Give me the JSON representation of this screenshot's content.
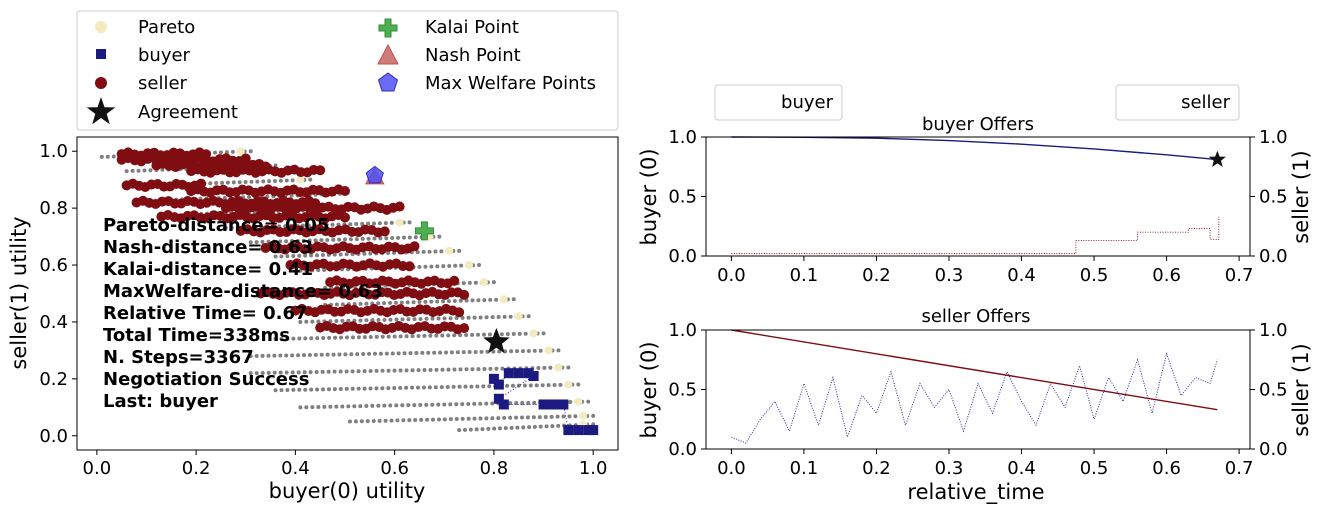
{
  "colors": {
    "pareto": "#f2ebc0",
    "buyer": "#1a1a80",
    "seller": "#7f0d12",
    "outcomes": "#808080",
    "kalai": "#4caf50",
    "nash": "#c0504d",
    "welfare": "#5050f0",
    "agreement": "#111111",
    "buyer_line": "#1a1a80",
    "seller_line": "#7f0d12"
  },
  "chart_data": [
    {
      "type": "scatter",
      "xlabel": "buyer(0) utility",
      "ylabel": "seller(1) utility",
      "xlim": [
        -0.04,
        1.05
      ],
      "ylim": [
        -0.05,
        1.05
      ],
      "xticks": [
        "0.0",
        "0.2",
        "0.4",
        "0.6",
        "0.8",
        "1.0"
      ],
      "xtick_values": [
        0,
        0.2,
        0.4,
        0.6,
        0.8,
        1.0
      ],
      "yticks": [
        "0.0",
        "0.2",
        "0.4",
        "0.6",
        "0.8",
        "1.0"
      ],
      "ytick_values": [
        0,
        0.2,
        0.4,
        0.6,
        0.8,
        1.0
      ],
      "legend": {
        "placement": "top",
        "items": [
          {
            "label": "Pareto",
            "marker": "circle-pareto"
          },
          {
            "label": "Kalai Point",
            "marker": "plus-kalai"
          },
          {
            "label": "buyer",
            "marker": "square-buyer"
          },
          {
            "label": "Nash Point",
            "marker": "triangle-nash"
          },
          {
            "label": "seller",
            "marker": "circle-seller"
          },
          {
            "label": "Max Welfare Points",
            "marker": "pentagon-welfare"
          },
          {
            "label": "Agreement",
            "marker": "star-agreement"
          }
        ]
      },
      "special_points": {
        "kalai": [
          0.66,
          0.72
        ],
        "nash": [
          0.56,
          0.91
        ],
        "welfare": [
          0.56,
          0.915
        ],
        "agreement": [
          0.805,
          0.33
        ]
      },
      "stats": [
        "Pareto-distance= 0.05",
        "Nash-distance= 0.63",
        "Kalai-distance= 0.41",
        "MaxWelfare-distance= 0.63",
        "Relative Time= 0.67",
        "Total Time=338ms",
        "N. Steps=3367",
        "Negotiation Success",
        "Last: buyer"
      ],
      "outcome_rows": [
        {
          "y": 0.98,
          "x0": 0.01,
          "x1": 0.31
        },
        {
          "y": 0.93,
          "x0": 0.06,
          "x1": 0.36
        },
        {
          "y": 0.88,
          "x0": 0.11,
          "x1": 0.43
        },
        {
          "y": 0.83,
          "x0": 0.16,
          "x1": 0.49
        },
        {
          "y": 0.78,
          "x0": 0.21,
          "x1": 0.56
        },
        {
          "y": 0.73,
          "x0": 0.26,
          "x1": 0.63
        },
        {
          "y": 0.68,
          "x0": 0.31,
          "x1": 0.69
        },
        {
          "y": 0.63,
          "x0": 0.36,
          "x1": 0.73
        },
        {
          "y": 0.58,
          "x0": 0.41,
          "x1": 0.77
        },
        {
          "y": 0.52,
          "x0": 0.46,
          "x1": 0.8
        },
        {
          "y": 0.46,
          "x0": 0.46,
          "x1": 0.84
        },
        {
          "y": 0.4,
          "x0": 0.41,
          "x1": 0.87
        },
        {
          "y": 0.34,
          "x0": 0.36,
          "x1": 0.9
        },
        {
          "y": 0.28,
          "x0": 0.31,
          "x1": 0.93
        },
        {
          "y": 0.22,
          "x0": 0.31,
          "x1": 0.95
        },
        {
          "y": 0.16,
          "x0": 0.36,
          "x1": 0.97
        },
        {
          "y": 0.1,
          "x0": 0.41,
          "x1": 0.99
        },
        {
          "y": 0.05,
          "x0": 0.51,
          "x1": 1.0
        },
        {
          "y": 0.02,
          "x0": 0.73,
          "x1": 1.0
        }
      ],
      "seller_rows": [
        {
          "y": 0.99,
          "x0": 0.05,
          "x1": 0.22
        },
        {
          "y": 0.97,
          "x0": 0.05,
          "x1": 0.3
        },
        {
          "y": 0.95,
          "x0": 0.12,
          "x1": 0.34
        },
        {
          "y": 0.93,
          "x0": 0.19,
          "x1": 0.45
        },
        {
          "y": 0.88,
          "x0": 0.06,
          "x1": 0.21
        },
        {
          "y": 0.86,
          "x0": 0.19,
          "x1": 0.5
        },
        {
          "y": 0.82,
          "x0": 0.08,
          "x1": 0.44
        },
        {
          "y": 0.8,
          "x0": 0.26,
          "x1": 0.61
        },
        {
          "y": 0.77,
          "x0": 0.13,
          "x1": 0.5
        },
        {
          "y": 0.72,
          "x0": 0.29,
          "x1": 0.58
        },
        {
          "y": 0.66,
          "x0": 0.34,
          "x1": 0.64
        },
        {
          "y": 0.6,
          "x0": 0.39,
          "x1": 0.63
        },
        {
          "y": 0.54,
          "x0": 0.47,
          "x1": 0.72
        },
        {
          "y": 0.5,
          "x0": 0.33,
          "x1": 0.74
        },
        {
          "y": 0.44,
          "x0": 0.4,
          "x1": 0.73
        },
        {
          "y": 0.38,
          "x0": 0.45,
          "x1": 0.74
        }
      ],
      "buyer_points": [
        [
          0.8,
          0.2
        ],
        [
          0.81,
          0.18
        ],
        [
          0.83,
          0.22
        ],
        [
          0.85,
          0.22
        ],
        [
          0.87,
          0.22
        ],
        [
          0.88,
          0.21
        ],
        [
          0.81,
          0.13
        ],
        [
          0.82,
          0.11
        ],
        [
          0.9,
          0.11
        ],
        [
          0.92,
          0.11
        ],
        [
          0.94,
          0.11
        ],
        [
          0.95,
          0.02
        ],
        [
          0.97,
          0.02
        ],
        [
          0.99,
          0.02
        ],
        [
          1.0,
          0.02
        ]
      ]
    },
    {
      "type": "line",
      "title": "buyer Offers",
      "ylabel_left": "buyer (0)",
      "ylabel_right": "seller (1)",
      "xlim": [
        -0.035,
        0.715
      ],
      "ylim": [
        0,
        1
      ],
      "xticks": [
        "0.0",
        "0.1",
        "0.2",
        "0.3",
        "0.4",
        "0.5",
        "0.6",
        "0.7"
      ],
      "xtick_values": [
        0,
        0.1,
        0.2,
        0.3,
        0.4,
        0.5,
        0.6,
        0.7
      ],
      "yticks": [
        "0.0",
        "0.5",
        "1.0"
      ],
      "ytick_values": [
        0,
        0.5,
        1.0
      ],
      "legend_left": "buyer",
      "legend_right": "seller",
      "series": [
        {
          "name": "buyer",
          "style": "solid",
          "x": [
            0,
            0.1,
            0.2,
            0.3,
            0.4,
            0.5,
            0.6,
            0.67
          ],
          "y": [
            1.0,
            0.998,
            0.99,
            0.97,
            0.94,
            0.9,
            0.85,
            0.81
          ]
        },
        {
          "name": "seller",
          "style": "dotted",
          "x": [
            0,
            0.47,
            0.475,
            0.55,
            0.56,
            0.62,
            0.63,
            0.65,
            0.66,
            0.67,
            0.672
          ],
          "y": [
            0.02,
            0.02,
            0.13,
            0.13,
            0.2,
            0.2,
            0.23,
            0.23,
            0.14,
            0.14,
            0.33
          ]
        }
      ],
      "agreement": [
        0.67,
        0.81
      ]
    },
    {
      "type": "line",
      "title": "seller Offers",
      "xlabel": "relative_time",
      "ylabel_left": "buyer (0)",
      "ylabel_right": "seller (1)",
      "xlim": [
        -0.035,
        0.715
      ],
      "ylim": [
        0,
        1
      ],
      "xticks": [
        "0.0",
        "0.1",
        "0.2",
        "0.3",
        "0.4",
        "0.5",
        "0.6",
        "0.7"
      ],
      "xtick_values": [
        0,
        0.1,
        0.2,
        0.3,
        0.4,
        0.5,
        0.6,
        0.7
      ],
      "yticks": [
        "0.0",
        "0.5",
        "1.0"
      ],
      "ytick_values": [
        0,
        0.5,
        1.0
      ],
      "series": [
        {
          "name": "seller",
          "style": "solid",
          "x": [
            0,
            0.67
          ],
          "y": [
            1.0,
            0.33
          ]
        },
        {
          "name": "buyer",
          "style": "dotted",
          "x": [
            0,
            0.02,
            0.04,
            0.06,
            0.08,
            0.1,
            0.12,
            0.14,
            0.16,
            0.18,
            0.2,
            0.22,
            0.24,
            0.26,
            0.28,
            0.3,
            0.32,
            0.34,
            0.36,
            0.38,
            0.4,
            0.42,
            0.44,
            0.46,
            0.48,
            0.5,
            0.52,
            0.54,
            0.56,
            0.58,
            0.6,
            0.62,
            0.64,
            0.66,
            0.67
          ],
          "y": [
            0.1,
            0.05,
            0.25,
            0.4,
            0.15,
            0.55,
            0.2,
            0.6,
            0.1,
            0.45,
            0.3,
            0.65,
            0.2,
            0.55,
            0.35,
            0.5,
            0.15,
            0.55,
            0.3,
            0.65,
            0.4,
            0.2,
            0.55,
            0.35,
            0.7,
            0.25,
            0.6,
            0.4,
            0.75,
            0.3,
            0.8,
            0.45,
            0.6,
            0.55,
            0.75
          ]
        }
      ]
    }
  ]
}
